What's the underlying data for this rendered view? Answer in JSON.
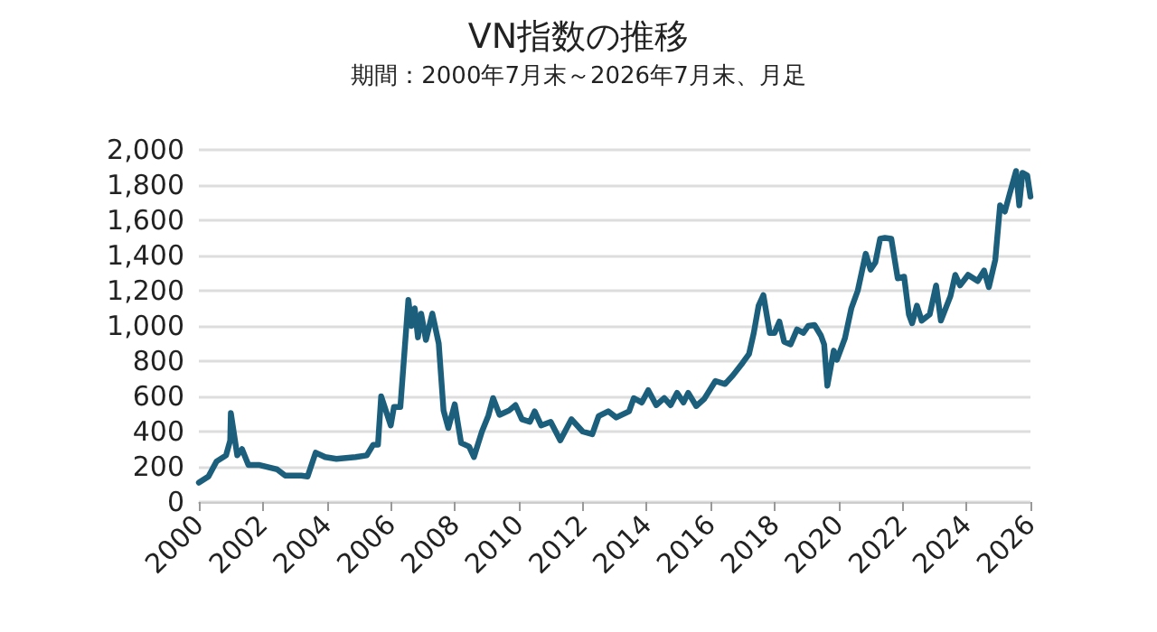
{
  "chart_data": {
    "type": "line",
    "title": "VN指数の推移",
    "subtitle": "期間：2000年7月末～2026年7月末、月足",
    "x": [
      2000.0,
      2000.3,
      2000.55,
      2000.85,
      2000.98,
      2001.0,
      2001.2,
      2001.35,
      2001.55,
      2001.9,
      2002.45,
      2002.7,
      2003.2,
      2003.4,
      2003.65,
      2003.95,
      2004.3,
      2004.9,
      2005.25,
      2005.45,
      2005.6,
      2005.7,
      2006.0,
      2006.1,
      2006.3,
      2006.55,
      2006.65,
      2006.75,
      2006.85,
      2006.95,
      2007.1,
      2007.3,
      2007.5,
      2007.65,
      2007.8,
      2008.0,
      2008.2,
      2008.45,
      2008.6,
      2008.85,
      2009.05,
      2009.2,
      2009.4,
      2009.7,
      2009.9,
      2010.1,
      2010.35,
      2010.5,
      2010.7,
      2011.0,
      2011.3,
      2011.65,
      2012.0,
      2012.3,
      2012.5,
      2012.8,
      2013.05,
      2013.45,
      2013.6,
      2013.85,
      2014.05,
      2014.3,
      2014.55,
      2014.75,
      2014.95,
      2015.15,
      2015.3,
      2015.55,
      2015.8,
      2016.15,
      2016.45,
      2016.7,
      2017.0,
      2017.2,
      2017.35,
      2017.5,
      2017.65,
      2017.85,
      2018.0,
      2018.15,
      2018.3,
      2018.5,
      2018.7,
      2018.9,
      2019.05,
      2019.25,
      2019.45,
      2019.55,
      2019.65,
      2019.85,
      2019.95,
      2020.2,
      2020.4,
      2020.6,
      2020.85,
      2021.0,
      2021.15,
      2021.3,
      2021.45,
      2021.65,
      2021.85,
      2022.05,
      2022.2,
      2022.3,
      2022.45,
      2022.6,
      2022.85,
      2023.05,
      2023.2,
      2023.5,
      2023.65,
      2023.8,
      2024.05,
      2024.35,
      2024.55,
      2024.7,
      2024.9,
      2025.05,
      2025.2,
      2025.35,
      2025.55,
      2025.65,
      2025.75,
      2025.9,
      2026.0
    ],
    "series": [
      {
        "color": "#1b5f7c",
        "values": [
          110,
          145,
          230,
          265,
          350,
          505,
          265,
          300,
          210,
          210,
          185,
          150,
          150,
          145,
          280,
          255,
          245,
          255,
          265,
          325,
          325,
          600,
          435,
          540,
          540,
          1148,
          1000,
          1100,
          935,
          1070,
          920,
          1070,
          900,
          520,
          420,
          555,
          335,
          315,
          255,
          400,
          490,
          590,
          495,
          520,
          550,
          470,
          455,
          515,
          435,
          455,
          350,
          470,
          400,
          385,
          488,
          515,
          480,
          515,
          590,
          565,
          635,
          550,
          590,
          550,
          620,
          565,
          620,
          545,
          585,
          687,
          670,
          720,
          790,
          840,
          960,
          1115,
          1175,
          960,
          960,
          1025,
          910,
          895,
          980,
          960,
          1000,
          1005,
          945,
          895,
          660,
          860,
          808,
          930,
          1100,
          1200,
          1410,
          1320,
          1360,
          1495,
          1500,
          1495,
          1270,
          1280,
          1065,
          1015,
          1115,
          1030,
          1065,
          1230,
          1030,
          1170,
          1290,
          1230,
          1290,
          1255,
          1315,
          1220,
          1375,
          1685,
          1650,
          1750,
          1880,
          1685,
          1870,
          1855,
          1735
        ]
      }
    ],
    "xlim": [
      2000,
      2026
    ],
    "xticks": [
      2000,
      2002,
      2004,
      2006,
      2008,
      2010,
      2012,
      2014,
      2016,
      2018,
      2020,
      2022,
      2024,
      2026
    ],
    "ylim": [
      0,
      2000
    ],
    "yticks": [
      {
        "value": 0,
        "label": "0"
      },
      {
        "value": 200,
        "label": "200"
      },
      {
        "value": 400,
        "label": "400"
      },
      {
        "value": 600,
        "label": "600"
      },
      {
        "value": 800,
        "label": "800"
      },
      {
        "value": 1000,
        "label": "1,000"
      },
      {
        "value": 1200,
        "label": "1,200"
      },
      {
        "value": 1400,
        "label": "1,400"
      },
      {
        "value": 1600,
        "label": "1,600"
      },
      {
        "value": 1800,
        "label": "1,800"
      },
      {
        "value": 2000,
        "label": "2,000"
      }
    ],
    "grid": "y",
    "marker": "none",
    "line_style": "solid"
  }
}
